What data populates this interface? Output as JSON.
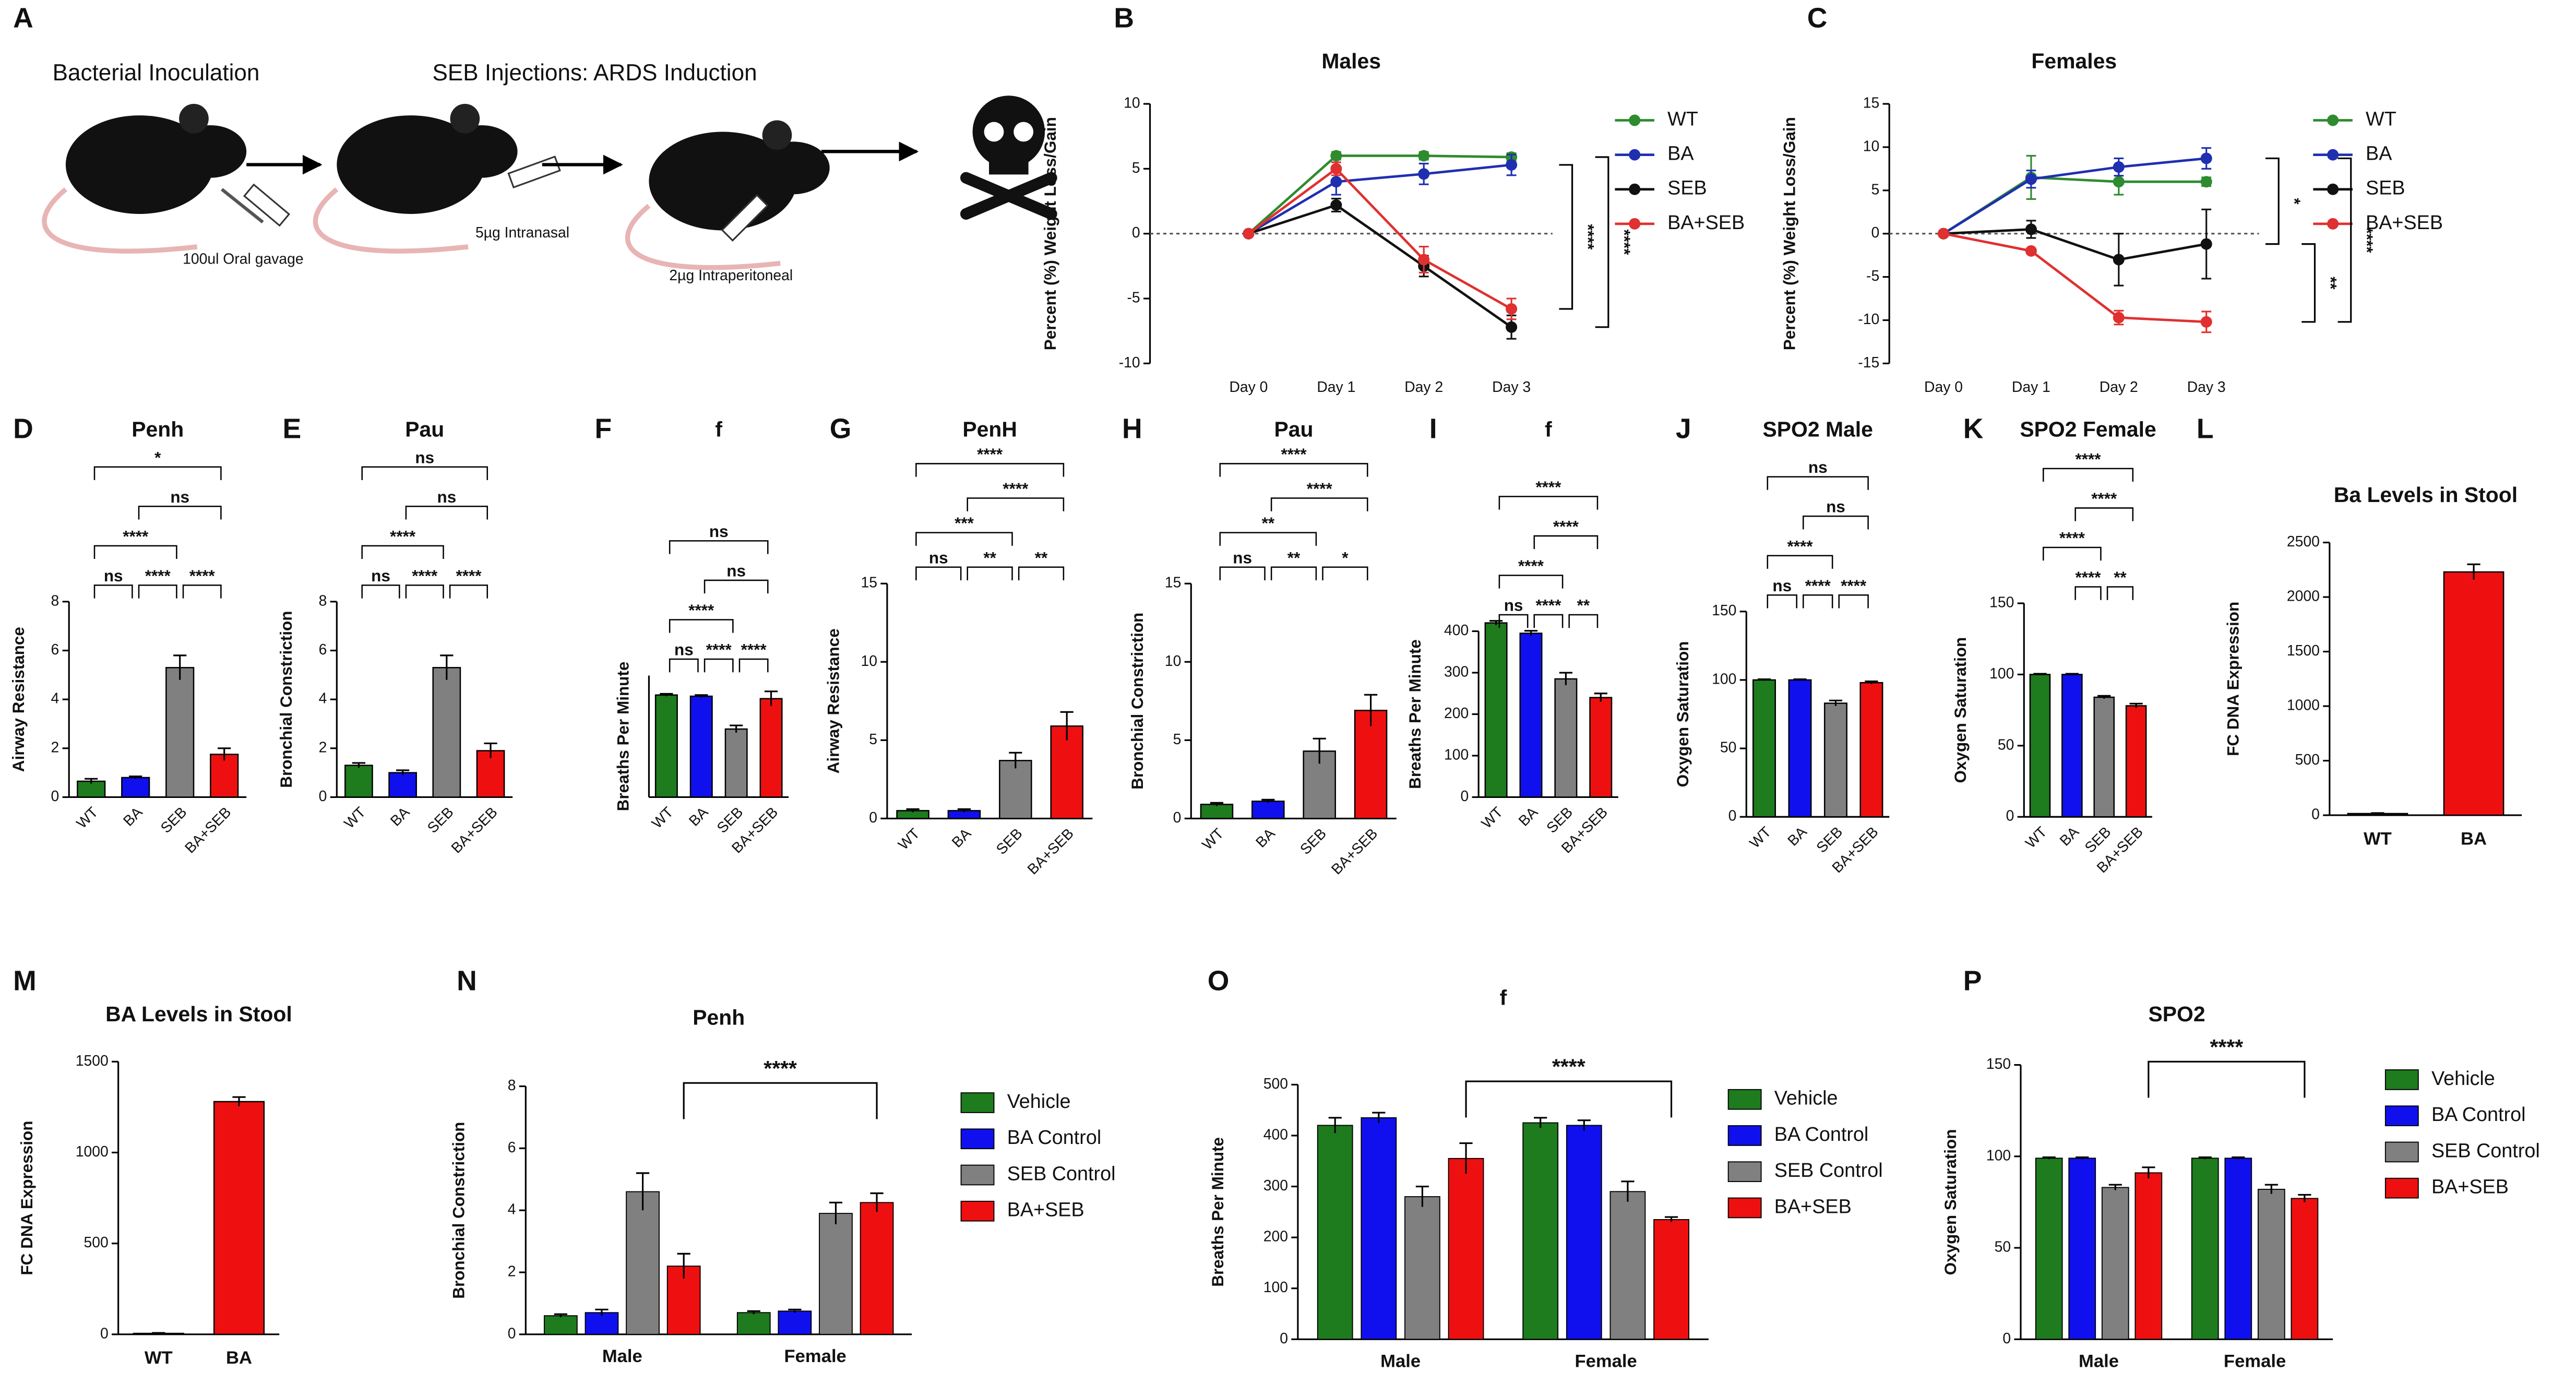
{
  "schematic": {
    "label": "A",
    "steps": [
      "Bacterial Inoculation",
      "SEB Injections: ARDS Induction"
    ],
    "notes": [
      "100ul Oral gavage",
      "5µg Intranasal",
      "2µg Intraperitoneal"
    ]
  },
  "chart_data": [
    {
      "label": "B",
      "type": "line",
      "title": "Males",
      "ylabel": "Percent (%) Weight Loss/Gain",
      "categories": [
        "Day 0",
        "Day 1",
        "Day 2",
        "Day 3"
      ],
      "ylim": [
        -10,
        10
      ],
      "yticks": [
        -10,
        -5,
        0,
        5,
        10
      ],
      "zero_line": true,
      "series": [
        {
          "name": "WT",
          "color": "#2e8b2e",
          "values": [
            0,
            6,
            6,
            5.9
          ],
          "errors": [
            0,
            0.3,
            0.3,
            0.3
          ]
        },
        {
          "name": "BA",
          "color": "#1f2fb0",
          "values": [
            0,
            4,
            4.6,
            5.3
          ],
          "errors": [
            0,
            1,
            0.8,
            0.8
          ]
        },
        {
          "name": "SEB",
          "color": "#111111",
          "values": [
            0,
            2.2,
            -2.5,
            -7.2
          ],
          "errors": [
            0,
            0.5,
            0.8,
            0.9
          ]
        },
        {
          "name": "BA+SEB",
          "color": "#e03030",
          "values": [
            0,
            5,
            -2,
            -5.8
          ],
          "errors": [
            0,
            0.5,
            1,
            0.8
          ]
        }
      ],
      "brackets": [
        {
          "between": [
            "BA",
            "BA+SEB"
          ],
          "label": "****"
        },
        {
          "between": [
            "WT",
            "SEB"
          ],
          "label": "****"
        }
      ]
    },
    {
      "label": "C",
      "type": "line",
      "title": "Females",
      "ylabel": "Percent (%) Weight Loss/Gain",
      "categories": [
        "Day 0",
        "Day 1",
        "Day 2",
        "Day 3"
      ],
      "ylim": [
        -15,
        15
      ],
      "yticks": [
        -15,
        -10,
        -5,
        0,
        5,
        10,
        15
      ],
      "zero_line": true,
      "series": [
        {
          "name": "WT",
          "color": "#2e8b2e",
          "values": [
            0,
            6.5,
            6,
            6
          ],
          "errors": [
            0,
            2.5,
            1.5,
            0.5
          ]
        },
        {
          "name": "BA",
          "color": "#1f2fb0",
          "values": [
            0,
            6.3,
            7.7,
            8.7
          ],
          "errors": [
            0,
            1,
            1,
            1.2
          ]
        },
        {
          "name": "SEB",
          "color": "#111111",
          "values": [
            0,
            0.5,
            -3,
            -1.2
          ],
          "errors": [
            0,
            1,
            3,
            4
          ]
        },
        {
          "name": "BA+SEB",
          "color": "#e03030",
          "values": [
            0,
            -2,
            -9.7,
            -10.2
          ],
          "errors": [
            0,
            0.3,
            0.8,
            1.2
          ]
        }
      ],
      "brackets": [
        {
          "between": [
            "BA",
            "SEB"
          ],
          "label": "*"
        },
        {
          "between": [
            "SEB",
            "BA+SEB"
          ],
          "label": "**"
        },
        {
          "between": [
            "BA",
            "BA+SEB"
          ],
          "label": "****"
        }
      ]
    },
    {
      "label": "D",
      "type": "bar",
      "title": "Penh",
      "ylabel": "Airway Resistance",
      "categories": [
        "WT",
        "BA",
        "SEB",
        "BA+SEB"
      ],
      "values": [
        0.65,
        0.8,
        5.3,
        1.75
      ],
      "errors": [
        0.1,
        0.05,
        0.5,
        0.25
      ],
      "colors": [
        "#1e7b1e",
        "#1010ee",
        "#808080",
        "#ee1010"
      ],
      "ylim": [
        0,
        8
      ],
      "yticks": [
        0,
        2,
        4,
        6,
        8
      ],
      "significance": [
        {
          "between": [
            "WT",
            "BA"
          ],
          "label": "ns"
        },
        {
          "between": [
            "BA",
            "SEB"
          ],
          "label": "****"
        },
        {
          "between": [
            "SEB",
            "BA+SEB"
          ],
          "label": "****"
        },
        {
          "between": [
            "WT",
            "SEB"
          ],
          "label": "****"
        },
        {
          "between": [
            "BA",
            "BA+SEB"
          ],
          "label": "ns"
        },
        {
          "between": [
            "WT",
            "BA+SEB"
          ],
          "label": "*"
        }
      ]
    },
    {
      "label": "E",
      "type": "bar",
      "title": "Pau",
      "ylabel": "Bronchial Constriction",
      "categories": [
        "WT",
        "BA",
        "SEB",
        "BA+SEB"
      ],
      "values": [
        1.3,
        1.0,
        5.3,
        1.9
      ],
      "errors": [
        0.1,
        0.1,
        0.5,
        0.3
      ],
      "colors": [
        "#1e7b1e",
        "#1010ee",
        "#808080",
        "#ee1010"
      ],
      "ylim": [
        0,
        8
      ],
      "yticks": [
        0,
        2,
        4,
        6,
        8
      ],
      "significance": [
        {
          "between": [
            "WT",
            "BA"
          ],
          "label": "ns"
        },
        {
          "between": [
            "BA",
            "SEB"
          ],
          "label": "****"
        },
        {
          "between": [
            "SEB",
            "BA+SEB"
          ],
          "label": "****"
        },
        {
          "between": [
            "WT",
            "SEB"
          ],
          "label": "****"
        },
        {
          "between": [
            "BA",
            "BA+SEB"
          ],
          "label": "ns"
        },
        {
          "between": [
            "WT",
            "BA+SEB"
          ],
          "label": "ns"
        }
      ]
    },
    {
      "label": "F",
      "type": "bar",
      "title": "f",
      "ylabel": "Breaths Per Minute",
      "categories": [
        "WT",
        "BA",
        "SEB",
        "BA+SEB"
      ],
      "values": [
        420,
        415,
        280,
        405
      ],
      "errors": [
        5,
        5,
        15,
        30
      ],
      "colors": [
        "#1e7b1e",
        "#1010ee",
        "#808080",
        "#ee1010"
      ],
      "ylim": [
        0,
        500
      ],
      "significance": [
        {
          "between": [
            "WT",
            "BA"
          ],
          "label": "ns"
        },
        {
          "between": [
            "BA",
            "SEB"
          ],
          "label": "****"
        },
        {
          "between": [
            "SEB",
            "BA+SEB"
          ],
          "label": "****"
        },
        {
          "between": [
            "WT",
            "SEB"
          ],
          "label": "****"
        },
        {
          "between": [
            "BA",
            "BA+SEB"
          ],
          "label": "ns"
        },
        {
          "between": [
            "WT",
            "BA+SEB"
          ],
          "label": "ns"
        }
      ]
    },
    {
      "label": "G",
      "type": "bar",
      "title": "PenH",
      "ylabel": "Airway Resistance",
      "categories": [
        "WT",
        "BA",
        "SEB",
        "BA+SEB"
      ],
      "values": [
        0.5,
        0.5,
        3.7,
        5.9
      ],
      "errors": [
        0.1,
        0.1,
        0.5,
        0.9
      ],
      "colors": [
        "#1e7b1e",
        "#1010ee",
        "#808080",
        "#ee1010"
      ],
      "ylim": [
        0,
        15
      ],
      "yticks": [
        0,
        5,
        10,
        15
      ],
      "significance": [
        {
          "between": [
            "WT",
            "BA"
          ],
          "label": "ns"
        },
        {
          "between": [
            "BA",
            "SEB"
          ],
          "label": "**"
        },
        {
          "between": [
            "SEB",
            "BA+SEB"
          ],
          "label": "**"
        },
        {
          "between": [
            "WT",
            "SEB"
          ],
          "label": "***"
        },
        {
          "between": [
            "BA",
            "BA+SEB"
          ],
          "label": "****"
        },
        {
          "between": [
            "WT",
            "BA+SEB"
          ],
          "label": "****"
        }
      ]
    },
    {
      "label": "H",
      "type": "bar",
      "title": "Pau",
      "ylabel": "Bronchial Constriction",
      "categories": [
        "WT",
        "BA",
        "SEB",
        "BA+SEB"
      ],
      "values": [
        0.9,
        1.1,
        4.3,
        6.9
      ],
      "errors": [
        0.1,
        0.1,
        0.8,
        1.0
      ],
      "colors": [
        "#1e7b1e",
        "#1010ee",
        "#808080",
        "#ee1010"
      ],
      "ylim": [
        0,
        15
      ],
      "yticks": [
        0,
        5,
        10,
        15
      ],
      "significance": [
        {
          "between": [
            "WT",
            "BA"
          ],
          "label": "ns"
        },
        {
          "between": [
            "BA",
            "SEB"
          ],
          "label": "**"
        },
        {
          "between": [
            "SEB",
            "BA+SEB"
          ],
          "label": "*"
        },
        {
          "between": [
            "WT",
            "SEB"
          ],
          "label": "**"
        },
        {
          "between": [
            "BA",
            "BA+SEB"
          ],
          "label": "****"
        },
        {
          "between": [
            "WT",
            "BA+SEB"
          ],
          "label": "****"
        }
      ]
    },
    {
      "label": "I",
      "type": "bar",
      "title": "f",
      "ylabel": "Breaths Per Minute",
      "categories": [
        "WT",
        "BA",
        "SEB",
        "BA+SEB"
      ],
      "values": [
        420,
        395,
        285,
        240
      ],
      "errors": [
        5,
        6,
        15,
        10
      ],
      "colors": [
        "#1e7b1e",
        "#1010ee",
        "#808080",
        "#ee1010"
      ],
      "ylim": [
        0,
        400
      ],
      "yticks": [
        0,
        100,
        200,
        300,
        400
      ],
      "significance": [
        {
          "between": [
            "WT",
            "BA"
          ],
          "label": "ns"
        },
        {
          "between": [
            "BA",
            "SEB"
          ],
          "label": "****"
        },
        {
          "between": [
            "SEB",
            "BA+SEB"
          ],
          "label": "**"
        },
        {
          "between": [
            "WT",
            "SEB"
          ],
          "label": "****"
        },
        {
          "between": [
            "BA",
            "BA+SEB"
          ],
          "label": "****"
        },
        {
          "between": [
            "WT",
            "BA+SEB"
          ],
          "label": "****"
        }
      ]
    },
    {
      "label": "J",
      "type": "bar",
      "title": "SPO2 Male",
      "ylabel": "Oxygen Saturation",
      "categories": [
        "WT",
        "BA",
        "SEB",
        "BA+SEB"
      ],
      "values": [
        100,
        100,
        83,
        98
      ],
      "errors": [
        0.5,
        0.5,
        2,
        1
      ],
      "colors": [
        "#1e7b1e",
        "#1010ee",
        "#808080",
        "#ee1010"
      ],
      "ylim": [
        0,
        150
      ],
      "yticks": [
        0,
        50,
        100,
        150
      ],
      "significance": [
        {
          "between": [
            "WT",
            "BA"
          ],
          "label": "ns"
        },
        {
          "between": [
            "BA",
            "SEB"
          ],
          "label": "****"
        },
        {
          "between": [
            "SEB",
            "BA+SEB"
          ],
          "label": "****"
        },
        {
          "between": [
            "WT",
            "SEB"
          ],
          "label": "****"
        },
        {
          "between": [
            "BA",
            "BA+SEB"
          ],
          "label": "ns"
        },
        {
          "between": [
            "WT",
            "BA+SEB"
          ],
          "label": "ns"
        }
      ]
    },
    {
      "label": "K",
      "type": "bar",
      "title": "SPO2 Female",
      "ylabel": "Oxygen Saturation",
      "categories": [
        "WT",
        "BA",
        "SEB",
        "BA+SEB"
      ],
      "values": [
        100,
        100,
        84,
        78
      ],
      "errors": [
        0.5,
        0.5,
        1,
        1.5
      ],
      "colors": [
        "#1e7b1e",
        "#1010ee",
        "#808080",
        "#ee1010"
      ],
      "ylim": [
        0,
        150
      ],
      "yticks": [
        0,
        50,
        100,
        150
      ],
      "significance": [
        {
          "between": [
            "BA",
            "SEB"
          ],
          "label": "****"
        },
        {
          "between": [
            "SEB",
            "BA+SEB"
          ],
          "label": "**"
        },
        {
          "between": [
            "WT",
            "SEB"
          ],
          "label": "****"
        },
        {
          "between": [
            "BA",
            "BA+SEB"
          ],
          "label": "****"
        },
        {
          "between": [
            "WT",
            "BA+SEB"
          ],
          "label": "****"
        }
      ]
    },
    {
      "label": "L",
      "type": "bar",
      "title": "Ba Levels in Stool",
      "ylabel": "FC DNA Expression",
      "categories": [
        "WT",
        "BA"
      ],
      "values": [
        15,
        2230
      ],
      "errors": [
        5,
        70
      ],
      "colors": [
        "#222222",
        "#ee1010"
      ],
      "ylim": [
        0,
        2500
      ],
      "yticks": [
        0,
        500,
        1000,
        1500,
        2000,
        2500
      ]
    },
    {
      "label": "M",
      "type": "bar",
      "title": "BA Levels in Stool",
      "ylabel": "FC DNA Expression",
      "categories": [
        "WT",
        "BA"
      ],
      "values": [
        5,
        1280
      ],
      "errors": [
        3,
        25
      ],
      "colors": [
        "#222222",
        "#ee1010"
      ],
      "ylim": [
        0,
        1500
      ],
      "yticks": [
        0,
        500,
        1000,
        1500
      ]
    },
    {
      "label": "N",
      "type": "grouped_bar",
      "title": "Penh",
      "ylabel": "Bronchial Constriction",
      "categories": [
        "Male",
        "Female"
      ],
      "ylim": [
        0,
        8
      ],
      "yticks": [
        0,
        2,
        4,
        6,
        8
      ],
      "series": [
        {
          "name": "Vehicle",
          "color": "#1e7b1e",
          "values": [
            0.6,
            0.7
          ],
          "errors": [
            0.05,
            0.05
          ]
        },
        {
          "name": "BA Control",
          "color": "#1010ee",
          "values": [
            0.7,
            0.75
          ],
          "errors": [
            0.1,
            0.05
          ]
        },
        {
          "name": "SEB Control",
          "color": "#808080",
          "values": [
            4.6,
            3.9
          ],
          "errors": [
            0.6,
            0.35
          ]
        },
        {
          "name": "BA+SEB",
          "color": "#ee1010",
          "values": [
            2.2,
            4.25
          ],
          "errors": [
            0.4,
            0.3
          ]
        }
      ],
      "significance": [
        {
          "between": [
            "Male",
            "Female"
          ],
          "series": "BA+SEB",
          "label": "****"
        }
      ]
    },
    {
      "label": "O",
      "type": "grouped_bar",
      "title": "f",
      "ylabel": "Breaths Per Minute",
      "categories": [
        "Male",
        "Female"
      ],
      "ylim": [
        0,
        500
      ],
      "yticks": [
        0,
        100,
        200,
        300,
        400,
        500
      ],
      "series": [
        {
          "name": "Vehicle",
          "color": "#1e7b1e",
          "values": [
            420,
            425
          ],
          "errors": [
            15,
            10
          ]
        },
        {
          "name": "BA Control",
          "color": "#1010ee",
          "values": [
            435,
            420
          ],
          "errors": [
            10,
            10
          ]
        },
        {
          "name": "SEB Control",
          "color": "#808080",
          "values": [
            280,
            290
          ],
          "errors": [
            20,
            20
          ]
        },
        {
          "name": "BA+SEB",
          "color": "#ee1010",
          "values": [
            355,
            235
          ],
          "errors": [
            30,
            5
          ]
        }
      ],
      "significance": [
        {
          "between": [
            "Male",
            "Female"
          ],
          "series": "BA+SEB",
          "label": "****"
        }
      ]
    },
    {
      "label": "P",
      "type": "grouped_bar",
      "title": "SPO2",
      "ylabel": "Oxygen Saturation",
      "categories": [
        "Male",
        "Female"
      ],
      "ylim": [
        0,
        150
      ],
      "yticks": [
        0,
        50,
        100,
        150
      ],
      "series": [
        {
          "name": "Vehicle",
          "color": "#1e7b1e",
          "values": [
            99,
            99
          ],
          "errors": [
            0.5,
            0.5
          ]
        },
        {
          "name": "BA Control",
          "color": "#1010ee",
          "values": [
            99,
            99
          ],
          "errors": [
            0.5,
            0.5
          ]
        },
        {
          "name": "SEB Control",
          "color": "#808080",
          "values": [
            83,
            82
          ],
          "errors": [
            1.5,
            2.5
          ]
        },
        {
          "name": "BA+SEB",
          "color": "#ee1010",
          "values": [
            91,
            77
          ],
          "errors": [
            3,
            2
          ]
        }
      ],
      "significance": [
        {
          "between": [
            "Male",
            "Female"
          ],
          "series": "BA+SEB",
          "label": "****"
        }
      ]
    }
  ]
}
